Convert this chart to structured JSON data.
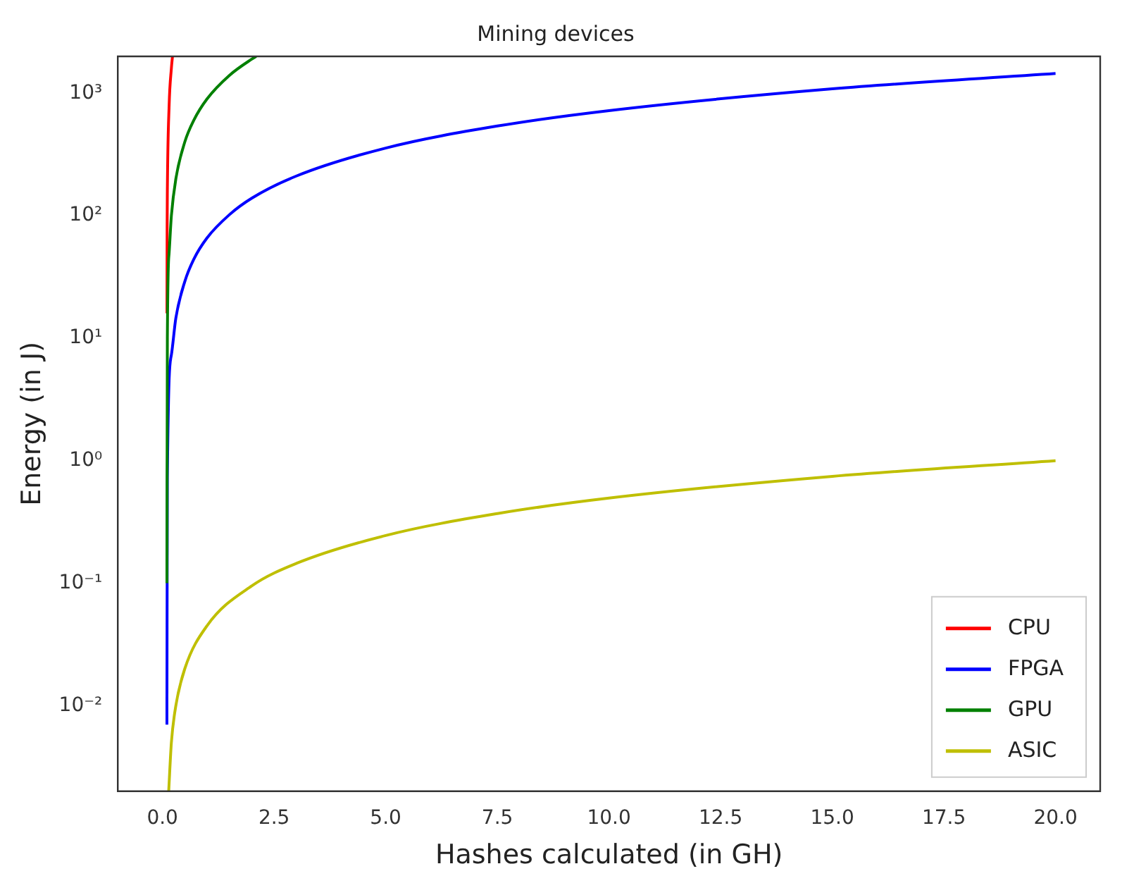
{
  "chart_data": {
    "type": "line",
    "title": "Mining devices",
    "xlabel": "Hashes calculated (in GH)",
    "ylabel": "Energy (in J)",
    "log": "y",
    "grid": false,
    "legend": "bottom right",
    "xlim": [
      -1,
      21
    ],
    "xticks": [
      {
        "value": 0,
        "label": "0.0"
      },
      {
        "value": 2.5,
        "label": "2.5"
      },
      {
        "value": 5,
        "label": "5.0"
      },
      {
        "value": 7.5,
        "label": "7.5"
      },
      {
        "value": 10,
        "label": "10.0"
      },
      {
        "value": 12.5,
        "label": "12.5"
      },
      {
        "value": 15,
        "label": "15.0"
      },
      {
        "value": 17.5,
        "label": "17.5"
      },
      {
        "value": 20,
        "label": "20.0"
      }
    ],
    "ylim": [
      0.002,
      2000
    ],
    "yticks": [
      {
        "value": 0.01,
        "label": "10⁻²"
      },
      {
        "value": 0.1,
        "label": "10⁻¹"
      },
      {
        "value": 1,
        "label": "10⁰"
      },
      {
        "value": 10,
        "label": "10¹"
      },
      {
        "value": 100,
        "label": "10²"
      },
      {
        "value": 1000,
        "label": "10³"
      }
    ],
    "series": [
      {
        "name": "CPU",
        "color": "#ff0000",
        "x": [
          0.101,
          0.105,
          0.11,
          0.15,
          0.2,
          0.225
        ],
        "values": [
          16,
          80,
          160,
          800,
          1600,
          2000
        ]
      },
      {
        "name": "FPGA",
        "color": "#0000ff",
        "x": [
          0.1001,
          0.11,
          0.2,
          0.3,
          0.5,
          0.7,
          1,
          1.5,
          2,
          3,
          5,
          7.5,
          10,
          15,
          20
        ],
        "values": [
          0.007,
          0.73,
          7.3,
          14.6,
          29,
          44,
          66,
          102,
          139,
          211,
          357,
          540,
          722,
          1086,
          1450
        ]
      },
      {
        "name": "GPU",
        "color": "#008000",
        "x": [
          0.1001,
          0.11,
          0.15,
          0.2,
          0.3,
          0.5,
          0.7,
          1,
          1.5,
          2,
          2.1
        ],
        "values": [
          0.1,
          10,
          50,
          100,
          200,
          400,
          600,
          900,
          1400,
          1900,
          2000
        ]
      },
      {
        "name": "ASIC",
        "color": "#bfbf00",
        "x": [
          0.14,
          0.2,
          0.3,
          0.5,
          1,
          2,
          3,
          5,
          7.5,
          10,
          15,
          20
        ],
        "values": [
          0.002,
          0.005,
          0.01,
          0.02,
          0.045,
          0.095,
          0.145,
          0.245,
          0.37,
          0.495,
          0.745,
          1.0
        ]
      }
    ]
  }
}
